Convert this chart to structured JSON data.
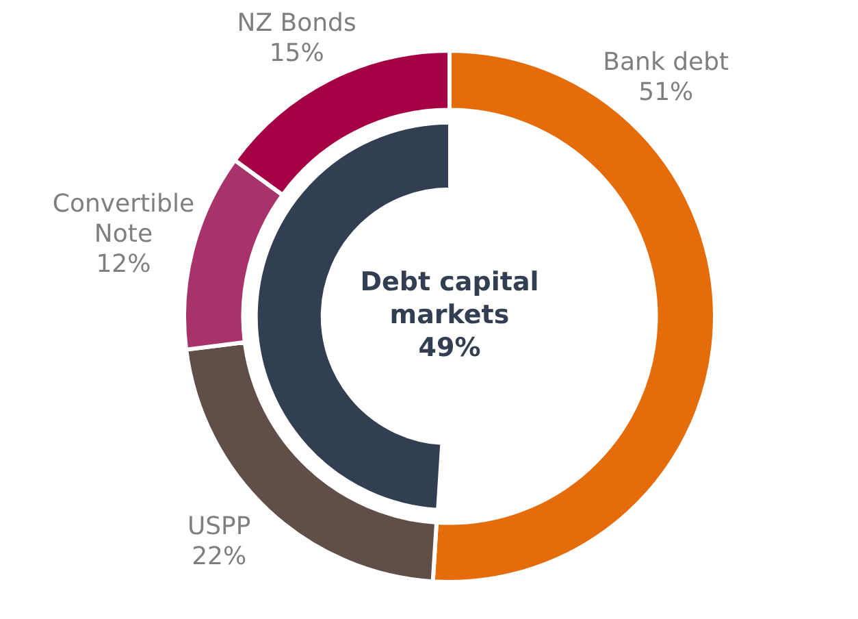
{
  "chart_data": {
    "type": "donut",
    "categories": [
      "Bank debt",
      "USPP",
      "Convertible Note",
      "NZ Bonds"
    ],
    "series": [
      {
        "values": [
          51,
          22,
          12,
          15
        ],
        "colors": [
          "#e46c0a",
          "#5f4f48",
          "#a8336b",
          "#a50044"
        ],
        "value_labels": [
          "51%",
          "22%",
          "12%",
          "15%"
        ]
      },
      {
        "name": "Debt capital markets",
        "values": [
          null,
          49,
          null,
          null
        ],
        "color": "#323f52",
        "value_labels": [
          null,
          "49%",
          null,
          null
        ]
      }
    ],
    "legend": false
  }
}
